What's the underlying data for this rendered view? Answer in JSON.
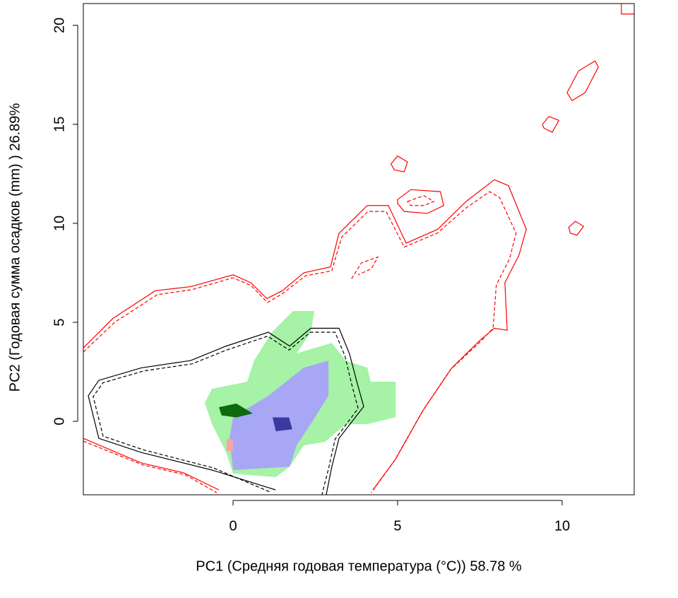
{
  "chart_data": {
    "type": "contour",
    "x_label": "PC1 (Средняя годовая температура (°C)) 58.78 %",
    "y_label": "PC2 (Годовая сумма осадков  (mm) ) 26.89%",
    "xlim": [
      -4.55,
      12.19
    ],
    "ylim": [
      -3.71,
      21.1
    ],
    "xticks": [
      0,
      5,
      10
    ],
    "yticks": [
      0,
      5,
      10,
      15,
      20
    ],
    "fills": [
      {
        "color": "#a6f2a6",
        "x": [
          -0.86,
          -0.64,
          0.43,
          0.64,
          1.18,
          1.82,
          2.47,
          2.36,
          1.93,
          3.0,
          3.43,
          4.08,
          4.18,
          4.94,
          4.94,
          4.08,
          3.43,
          2.79,
          2.15,
          1.72,
          1.29,
          0,
          -0.21,
          -0.64
        ],
        "y": [
          0.93,
          1.64,
          2.0,
          3.07,
          4.5,
          5.57,
          5.57,
          4.5,
          3.43,
          3.96,
          3.07,
          2.71,
          2.0,
          2.0,
          0.21,
          -0.14,
          -0.14,
          -1.04,
          -1.21,
          -2.29,
          -2.82,
          -2.64,
          -1.57,
          -0.14
        ]
      },
      {
        "color": "#a7a7f5",
        "x": [
          0,
          1.07,
          2.15,
          2.9,
          2.9,
          2.36,
          1.93,
          1.72,
          0,
          -0.11
        ],
        "y": [
          0.21,
          1.29,
          2.71,
          3.07,
          1.29,
          -0.14,
          -1.21,
          -2.29,
          -2.46,
          -0.86
        ]
      },
      {
        "color": "#0d6a0d",
        "x": [
          -0.43,
          0.1,
          0.6,
          0.1,
          -0.35
        ],
        "y": [
          0.71,
          0.9,
          0.4,
          0.2,
          0.3
        ]
      },
      {
        "color": "#3a3aa0",
        "x": [
          1.2,
          1.7,
          1.8,
          1.3
        ],
        "y": [
          0.2,
          0.2,
          -0.4,
          -0.5
        ]
      },
      {
        "color": "#f2a6a6",
        "x": [
          -0.2,
          0,
          0,
          -0.2
        ],
        "y": [
          -0.9,
          -0.9,
          -1.5,
          -1.5
        ]
      }
    ],
    "series": [
      {
        "color": "#ff0000",
        "dash": false,
        "closed": false,
        "x": [
          -4.55,
          -3.65,
          -2.36,
          -1.29,
          0,
          0.54,
          1.03,
          1.5,
          2.15,
          2.96,
          3.22,
          4.08,
          4.72,
          5.26,
          6.22,
          7.08,
          7.94,
          8.37,
          8.91,
          8.69,
          8.26,
          8.33,
          7.94,
          7.51,
          6.65,
          5.79,
          4.94,
          4.25
        ],
        "y": [
          3.71,
          5.2,
          6.6,
          6.8,
          7.4,
          7.0,
          6.2,
          6.6,
          7.5,
          7.8,
          9.5,
          10.9,
          10.9,
          9.0,
          9.7,
          11.1,
          12.2,
          11.9,
          9.7,
          8.4,
          7.0,
          4.6,
          4.7,
          4.1,
          2.7,
          0.6,
          -1.9,
          -3.46
        ]
      },
      {
        "color": "#ff0000",
        "dash": true,
        "closed": false,
        "x": [
          -4.55,
          -3.6,
          -2.3,
          -1.25,
          0,
          0.55,
          1.05,
          1.5,
          2.2,
          3.0,
          3.3,
          4.1,
          4.65,
          5.2,
          6.2,
          7.1,
          7.8,
          8.1,
          8.6,
          8.4,
          8.0,
          7.9,
          7.5,
          6.6,
          5.75,
          4.9,
          4.2
        ],
        "y": [
          3.5,
          5.0,
          6.4,
          6.65,
          7.25,
          6.85,
          6.0,
          6.45,
          7.35,
          7.6,
          9.3,
          10.6,
          10.6,
          8.8,
          9.5,
          10.8,
          11.6,
          11.3,
          9.5,
          8.2,
          6.9,
          4.7,
          4.0,
          2.6,
          0.5,
          -2.0,
          -3.6
        ]
      },
      {
        "color": "#ff0000",
        "dash": false,
        "closed": false,
        "x": [
          -4.55,
          -2.79,
          -1.5,
          -0.43
        ],
        "y": [
          -0.86,
          -2.1,
          -2.6,
          -3.46
        ]
      },
      {
        "color": "#ff0000",
        "dash": true,
        "closed": false,
        "x": [
          -4.55,
          -2.75,
          -1.45,
          -0.5
        ],
        "y": [
          -1.0,
          -2.2,
          -2.7,
          -3.6
        ]
      },
      {
        "color": "#ff0000",
        "dash": false,
        "closed": true,
        "x": [
          4.8,
          5.0,
          5.3,
          5.2,
          4.9
        ],
        "y": [
          13.0,
          13.4,
          13.1,
          12.6,
          12.7
        ]
      },
      {
        "color": "#ff0000",
        "dash": false,
        "closed": true,
        "x": [
          9.4,
          9.6,
          9.9,
          9.7,
          9.45
        ],
        "y": [
          15.0,
          15.4,
          15.2,
          14.6,
          14.8
        ]
      },
      {
        "color": "#ff0000",
        "dash": false,
        "closed": true,
        "x": [
          10.15,
          10.5,
          11.0,
          11.1,
          10.7,
          10.3
        ],
        "y": [
          16.6,
          17.7,
          18.2,
          17.9,
          16.6,
          16.2
        ]
      },
      {
        "color": "#ff0000",
        "dash": false,
        "closed": true,
        "x": [
          10.2,
          10.4,
          10.65,
          10.45,
          10.25
        ],
        "y": [
          9.8,
          10.1,
          9.85,
          9.4,
          9.5
        ]
      },
      {
        "color": "#ff0000",
        "dash": false,
        "closed": false,
        "x": [
          11.8,
          11.8,
          12.19
        ],
        "y": [
          21.1,
          20.57,
          20.57
        ]
      },
      {
        "color": "#ff0000",
        "dash": false,
        "closed": true,
        "x": [
          5.0,
          5.4,
          6.3,
          6.4,
          5.9,
          5.2,
          5.0
        ],
        "y": [
          11.2,
          11.7,
          11.6,
          10.9,
          10.5,
          10.6,
          11.0
        ]
      },
      {
        "color": "#ff0000",
        "dash": true,
        "closed": true,
        "x": [
          5.3,
          5.8,
          6.1,
          5.8,
          5.4
        ],
        "y": [
          11.1,
          11.4,
          11.1,
          10.9,
          10.9
        ]
      },
      {
        "color": "#ff0000",
        "dash": true,
        "closed": false,
        "x": [
          3.6,
          3.9,
          4.4,
          4.2,
          3.8
        ],
        "y": [
          7.2,
          8.0,
          8.3,
          7.7,
          7.4
        ]
      },
      {
        "color": "#000000",
        "dash": false,
        "closed": false,
        "x": [
          1.29,
          -0.64,
          -2.79,
          -4.08,
          -4.4,
          -4.08,
          -2.79,
          -1.29,
          -0.21,
          1.07,
          1.72,
          2.36,
          3.22,
          3.54,
          3.76,
          3.97,
          3.22,
          3.0,
          2.83
        ],
        "y": [
          -3.46,
          -2.46,
          -1.57,
          -0.86,
          1.29,
          2.07,
          2.7,
          3.07,
          3.8,
          4.5,
          3.8,
          4.7,
          4.7,
          3.4,
          2.0,
          0.75,
          -0.86,
          -2.3,
          -3.71
        ]
      },
      {
        "color": "#000000",
        "dash": true,
        "closed": false,
        "x": [
          1.1,
          -0.6,
          -2.7,
          -3.95,
          -4.25,
          -3.95,
          -2.7,
          -1.25,
          -0.2,
          1.05,
          1.7,
          2.35,
          3.1,
          3.4,
          3.6,
          3.8,
          3.1,
          2.9,
          2.7
        ],
        "y": [
          -3.55,
          -2.35,
          -1.45,
          -0.75,
          1.25,
          1.95,
          2.55,
          2.9,
          3.6,
          4.3,
          3.6,
          4.5,
          4.5,
          3.3,
          1.9,
          0.65,
          -0.9,
          -2.4,
          -3.71
        ]
      }
    ]
  }
}
